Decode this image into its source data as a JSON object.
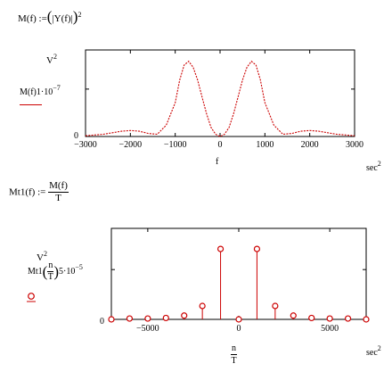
{
  "def1": {
    "lhs": "M(f) :=",
    "open": "(",
    "abs_open": "|",
    "inner": "Y(f)",
    "abs_close": "|",
    "close": ")",
    "exp": "2"
  },
  "plot1": {
    "y_units": "V",
    "y_units_exp": "2",
    "trace_label": "M(f)",
    "scale_label": "1·10",
    "scale_exp": "−7",
    "y_zero": "0",
    "x_ticks": [
      "−3000",
      "−2000",
      "−1000",
      "0",
      "1000",
      "2000",
      "3000"
    ],
    "x_var": "f",
    "x_units": "sec",
    "x_units_exp": "2",
    "trace_color": "#cc0000"
  },
  "def2": {
    "lhs": "Mt1(f) :=",
    "num": "M(f)",
    "den": "T"
  },
  "plot2": {
    "y_units": "V",
    "y_units_exp": "2",
    "trace_label": "Mt1",
    "arg_num": "n",
    "arg_den": "T",
    "scale_label": "5·10",
    "scale_exp": "−5",
    "y_zero": "0",
    "x_ticks": [
      "−5000",
      "0",
      "5000"
    ],
    "x_var_num": "n",
    "x_var_den": "T",
    "x_units": "sec",
    "x_units_exp": "2",
    "trace_color": "#cc0000"
  },
  "chart_data": [
    {
      "type": "line",
      "series": [
        {
          "x": [
            -3000,
            -2800,
            -2600,
            -2400,
            -2200,
            -2000,
            -1800,
            -1600,
            -1400,
            -1200,
            -1000,
            -900,
            -800,
            -700,
            -600,
            -500,
            -400,
            -300,
            -200,
            -100,
            0,
            100,
            200,
            300,
            400,
            500,
            600,
            700,
            800,
            900,
            1000,
            1200,
            1400,
            1600,
            1800,
            2000,
            2200,
            2400,
            2600,
            2800,
            3000
          ],
          "values": [
            0.01,
            0.02,
            0.03,
            0.05,
            0.07,
            0.08,
            0.07,
            0.04,
            0.03,
            0.15,
            0.45,
            0.75,
            0.95,
            1.0,
            0.92,
            0.75,
            0.52,
            0.3,
            0.12,
            0.03,
            0.0,
            0.03,
            0.12,
            0.3,
            0.52,
            0.75,
            0.92,
            1.0,
            0.95,
            0.75,
            0.45,
            0.15,
            0.03,
            0.04,
            0.07,
            0.08,
            0.07,
            0.05,
            0.03,
            0.02,
            0.01
          ]
        }
      ],
      "xlim": [
        -3000,
        3000
      ],
      "ylim": [
        0,
        1.15
      ],
      "x_ticks": [
        -3000,
        -2000,
        -1000,
        0,
        1000,
        2000,
        3000
      ],
      "y_tick": 0.63
    },
    {
      "type": "scatter",
      "stem": true,
      "series": [
        {
          "x": [
            -7000,
            -6000,
            -5000,
            -4000,
            -3000,
            -2000,
            -1000,
            0,
            1000,
            2000,
            3000,
            4000,
            5000,
            6000,
            7000
          ],
          "values": [
            0.0,
            0.05,
            0.05,
            0.08,
            0.22,
            0.78,
            4.1,
            0.0,
            4.1,
            0.78,
            0.22,
            0.08,
            0.05,
            0.05,
            0.0
          ]
        }
      ],
      "xlim": [
        -7000,
        7000
      ],
      "ylim": [
        0,
        5.3
      ],
      "x_ticks": [
        -5000,
        0,
        5000
      ],
      "y_tick": 2.9
    }
  ]
}
